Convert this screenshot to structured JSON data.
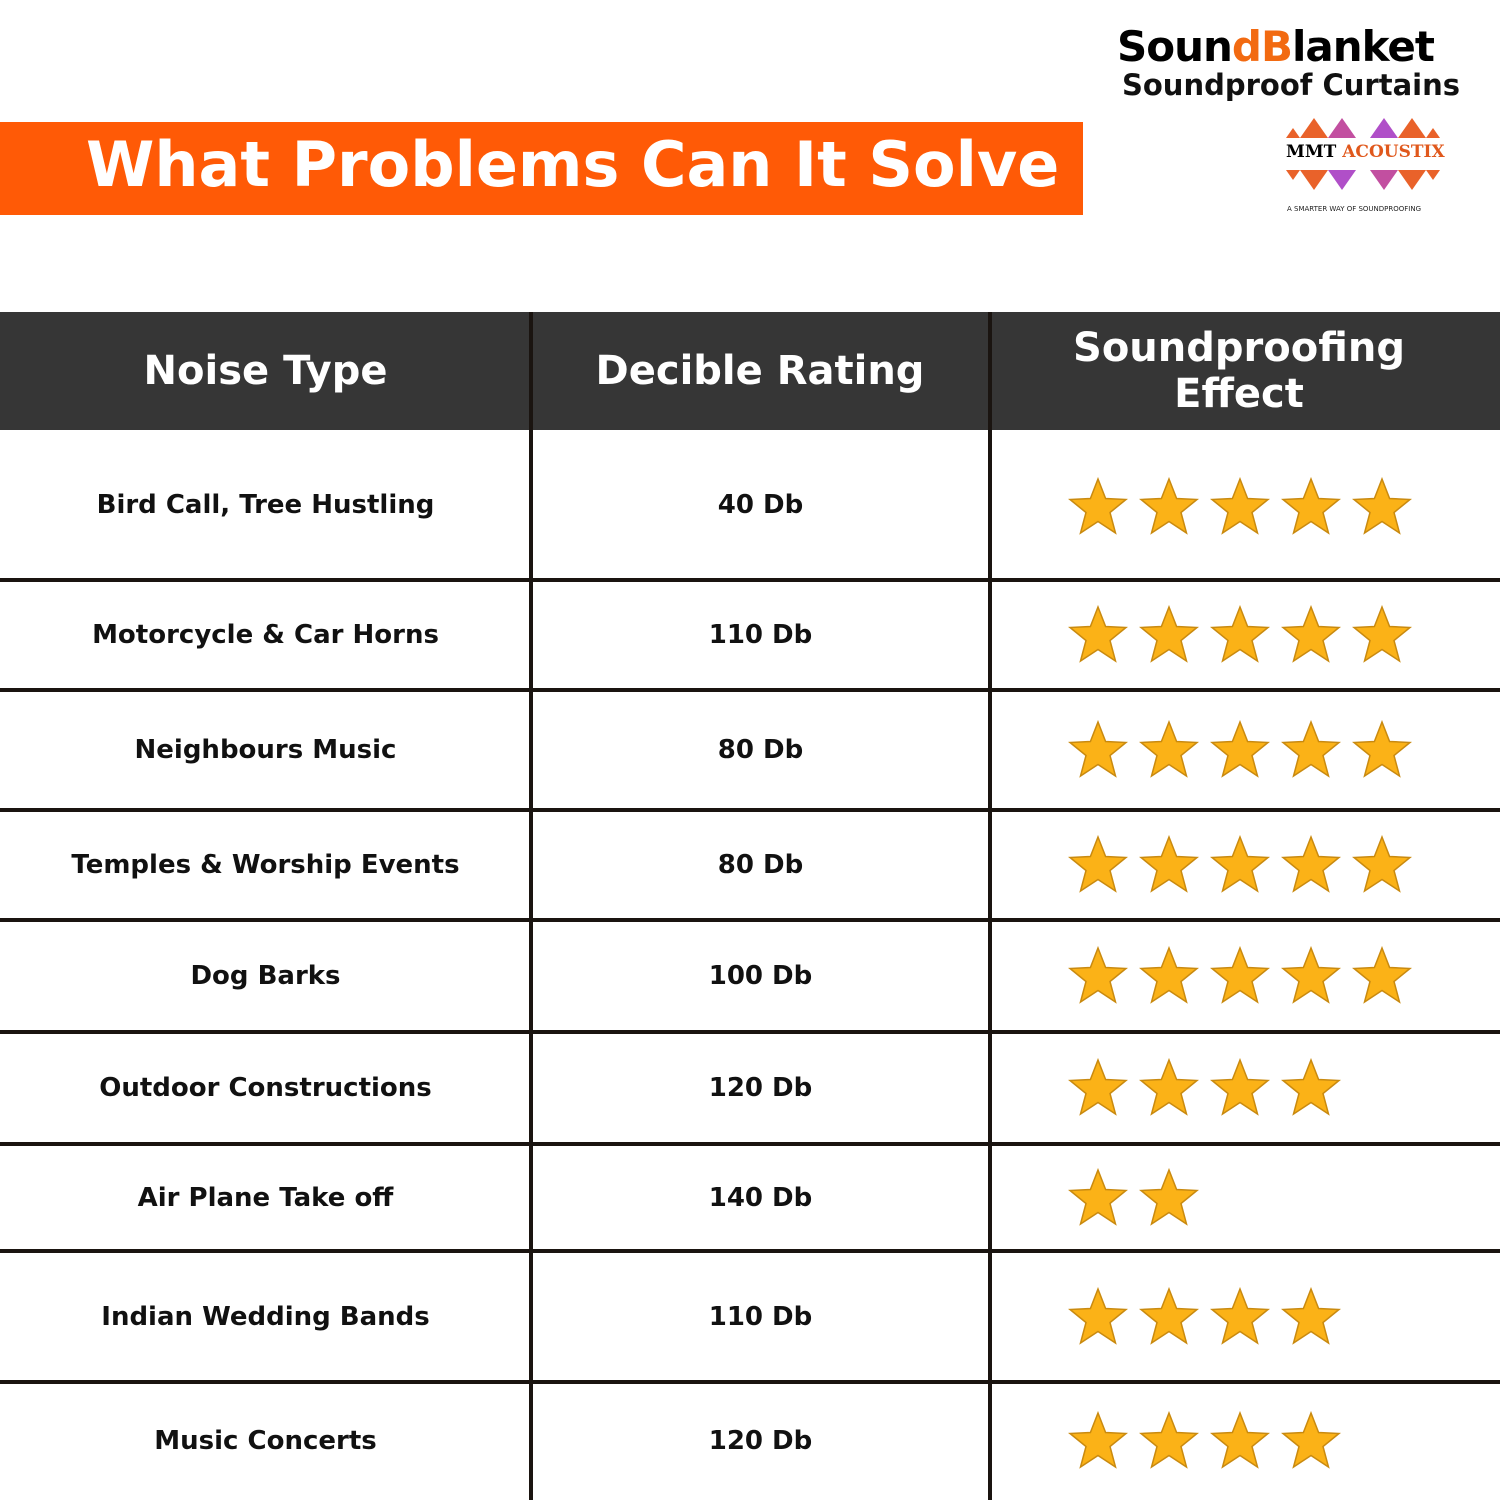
{
  "header": {
    "title": "What Problems Can It Solve ?"
  },
  "brand": {
    "name_part1": "Soun",
    "name_accent": "dB",
    "name_part2": "lanket",
    "subtitle": "Soundproof Curtains",
    "partner_logo": {
      "word1": "MMT",
      "word2": "ACOUSTIX",
      "tagline": "A SMARTER WAY OF SOUNDPROOFING"
    }
  },
  "colors": {
    "banner": "#ff5a06",
    "header_bg": "#363636",
    "star": "#fbb217",
    "star_outline": "#c98a10"
  },
  "table": {
    "columns": [
      "Noise Type",
      "Decible Rating",
      "Soundproofing Effect"
    ],
    "max_stars": 5,
    "rows": [
      {
        "noise": "Bird Call, Tree Hustling",
        "rating": "40 Db",
        "stars": 5
      },
      {
        "noise": "Motorcycle & Car Horns",
        "rating": "110 Db",
        "stars": 5
      },
      {
        "noise": "Neighbours Music",
        "rating": "80 Db",
        "stars": 5
      },
      {
        "noise": "Temples & Worship Events",
        "rating": "80 Db",
        "stars": 5
      },
      {
        "noise": "Dog Barks",
        "rating": "100 Db",
        "stars": 5
      },
      {
        "noise": "Outdoor Constructions",
        "rating": "120 Db",
        "stars": 4
      },
      {
        "noise": "Air Plane Take off",
        "rating": "140 Db",
        "stars": 2
      },
      {
        "noise": "Indian Wedding Bands",
        "rating": "110 Db",
        "stars": 4
      },
      {
        "noise": "Music Concerts",
        "rating": "120 Db",
        "stars": 4
      }
    ]
  }
}
